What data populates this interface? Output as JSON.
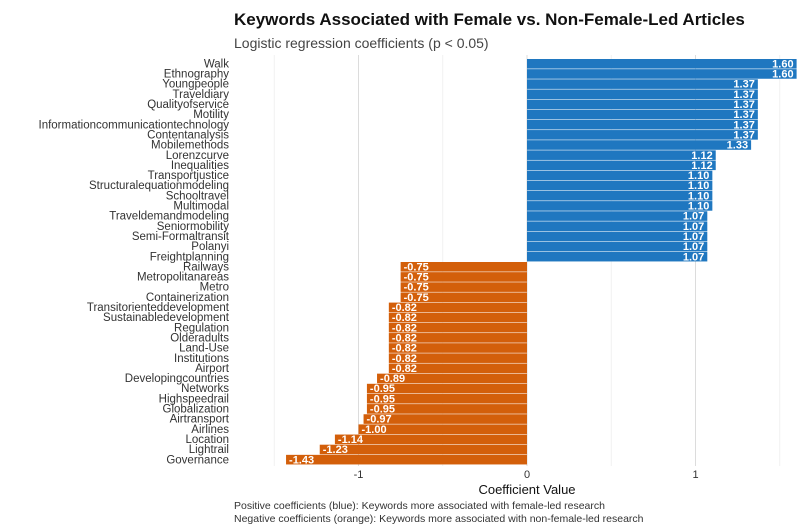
{
  "chart_data": {
    "type": "bar",
    "orientation": "horizontal",
    "title": "Keywords Associated with Female vs. Non-Female-Led Articles",
    "subtitle": "Logistic regression coefficients (p < 0.05)",
    "xlabel": "Coefficient Value",
    "ylabel": "",
    "xlim": [
      -1.43,
      1.6
    ],
    "x_ticks": [
      -1,
      0,
      1
    ],
    "grid": "vertical",
    "categories": [
      "Walk",
      "Ethnography",
      "Youngpeople",
      "Traveldiary",
      "Qualityofservice",
      "Motility",
      "Informationcommunicationtechnology",
      "Contentanalysis",
      "Mobilemethods",
      "Lorenzcurve",
      "Inequalities",
      "Transportjustice",
      "Structuralequationmodeling",
      "Schooltravel",
      "Multimodal",
      "Traveldemandmodeling",
      "Seniormobility",
      "Semi-Formaltransit",
      "Polanyi",
      "Freightplanning",
      "Railways",
      "Metropolitanareas",
      "Metro",
      "Containerization",
      "Transitorienteddevelopment",
      "Sustainabledevelopment",
      "Regulation",
      "Olderadults",
      "Land-Use",
      "Institutions",
      "Airport",
      "Developingcountries",
      "Networks",
      "Highspeedrail",
      "Globalization",
      "Airtransport",
      "Airlines",
      "Location",
      "Lightrail",
      "Governance"
    ],
    "values": [
      1.6,
      1.6,
      1.37,
      1.37,
      1.37,
      1.37,
      1.37,
      1.37,
      1.33,
      1.12,
      1.12,
      1.1,
      1.1,
      1.1,
      1.1,
      1.07,
      1.07,
      1.07,
      1.07,
      1.07,
      -0.75,
      -0.75,
      -0.75,
      -0.75,
      -0.82,
      -0.82,
      -0.82,
      -0.82,
      -0.82,
      -0.82,
      -0.82,
      -0.89,
      -0.95,
      -0.95,
      -0.95,
      -0.97,
      -1.0,
      -1.14,
      -1.23,
      -1.43
    ],
    "value_labels": [
      "1.60",
      "1.60",
      "1.37",
      "1.37",
      "1.37",
      "1.37",
      "1.37",
      "1.37",
      "1.33",
      "1.12",
      "1.12",
      "1.10",
      "1.10",
      "1.10",
      "1.10",
      "1.07",
      "1.07",
      "1.07",
      "1.07",
      "1.07",
      "-0.75",
      "-0.75",
      "-0.75",
      "-0.75",
      "-0.82",
      "-0.82",
      "-0.82",
      "-0.82",
      "-0.82",
      "-0.82",
      "-0.82",
      "-0.89",
      "-0.95",
      "-0.95",
      "-0.95",
      "-0.97",
      "-1.00",
      "-1.14",
      "-1.23",
      "-1.43"
    ],
    "colors": {
      "positive": "#1f77c0",
      "negative": "#d35f0a",
      "grid": "#dcdcdc"
    }
  },
  "captions": {
    "positive": "Positive coefficients (blue): Keywords more associated with female-led research",
    "negative": "Negative coefficients (orange): Keywords more associated with non-female-led research"
  }
}
